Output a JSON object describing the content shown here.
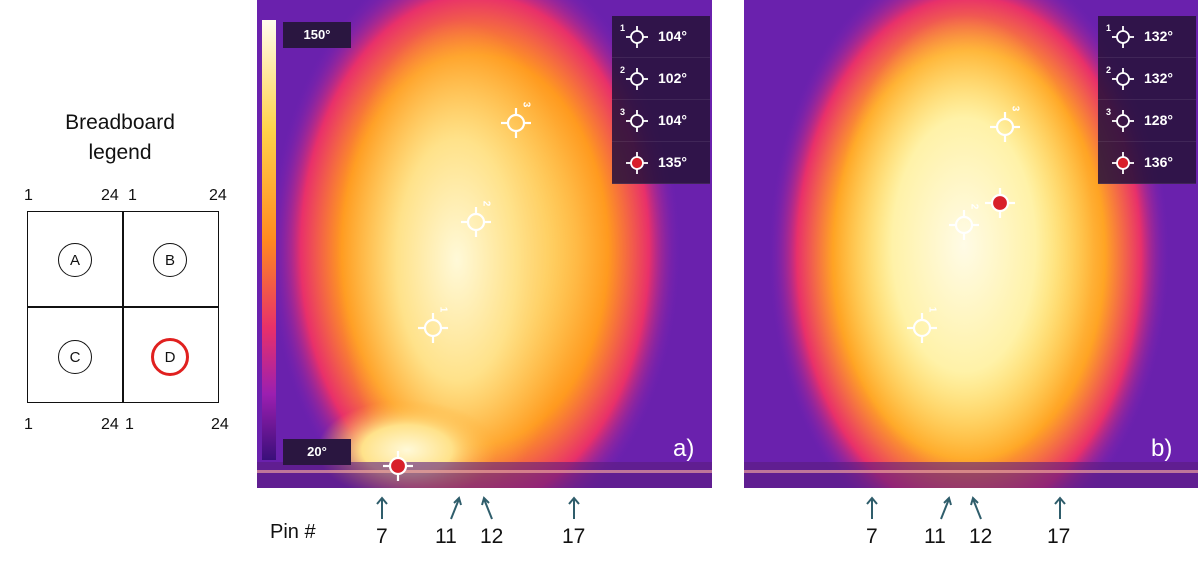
{
  "legend": {
    "title_line1": "Breadboard",
    "title_line2": "legend",
    "top_numbers": [
      "1",
      "24",
      "1",
      "24"
    ],
    "bottom_numbers": [
      "1",
      "24",
      "1",
      "24"
    ],
    "sections": [
      {
        "label": "A",
        "selected": false
      },
      {
        "label": "B",
        "selected": false
      },
      {
        "label": "C",
        "selected": false
      },
      {
        "label": "D",
        "selected": true
      }
    ],
    "highlight_color": "#e0201f"
  },
  "panel_a": {
    "letter": "a)",
    "scale_max": "150°",
    "scale_min": "20°",
    "readouts": [
      {
        "index": "1",
        "value": "104°",
        "type": "white"
      },
      {
        "index": "2",
        "value": "102°",
        "type": "white"
      },
      {
        "index": "3",
        "value": "104°",
        "type": "white"
      },
      {
        "index": "",
        "value": "135°",
        "type": "red"
      }
    ],
    "markers": [
      {
        "index": "1",
        "type": "white"
      },
      {
        "index": "2",
        "type": "white"
      },
      {
        "index": "3",
        "type": "white"
      },
      {
        "index": "",
        "type": "red"
      }
    ]
  },
  "panel_b": {
    "letter": "b)",
    "readouts": [
      {
        "index": "1",
        "value": "132°",
        "type": "white"
      },
      {
        "index": "2",
        "value": "132°",
        "type": "white"
      },
      {
        "index": "3",
        "value": "128°",
        "type": "white"
      },
      {
        "index": "",
        "value": "136°",
        "type": "red"
      }
    ],
    "markers": [
      {
        "index": "1",
        "type": "white"
      },
      {
        "index": "2",
        "type": "white"
      },
      {
        "index": "3",
        "type": "white"
      },
      {
        "index": "",
        "type": "red"
      }
    ]
  },
  "pins": {
    "header": "Pin #",
    "labels": [
      "7",
      "11",
      "12",
      "17"
    ]
  },
  "colors": {
    "arrow": "#2f5d6b",
    "readout_bg": "#28123c",
    "hot": "#fff6c8",
    "warm": "#ff9a1f",
    "cool": "#5b1fa8"
  }
}
